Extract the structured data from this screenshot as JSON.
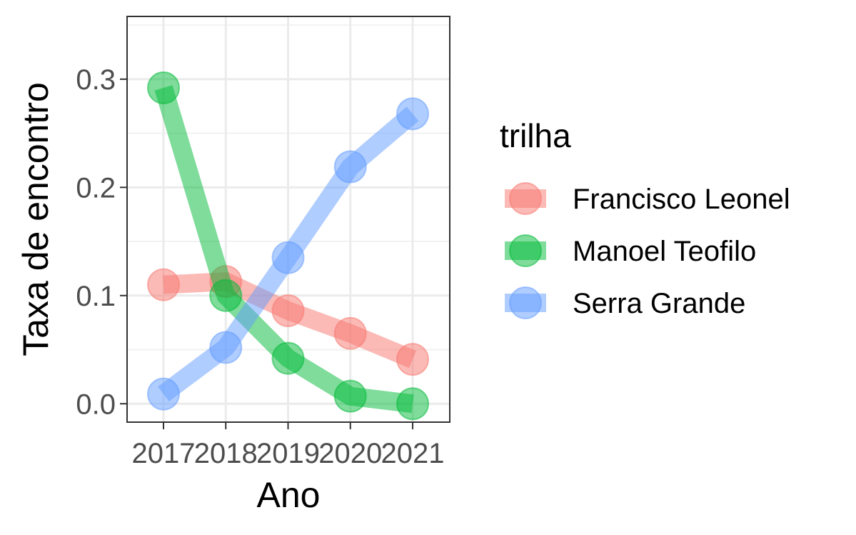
{
  "chart_data": {
    "type": "line",
    "title": "",
    "xlabel": "Ano",
    "ylabel": "Taxa de encontro",
    "categories": [
      "2017",
      "2018",
      "2019",
      "2020",
      "2021"
    ],
    "ylim": [
      -0.017,
      0.358
    ],
    "yticks": [
      "0.0",
      "0.1",
      "0.2",
      "0.3"
    ],
    "ytick_values": [
      0,
      0.1,
      0.2,
      0.3
    ],
    "grid": true,
    "legend": {
      "title": "trilha",
      "position": "right"
    },
    "series": [
      {
        "name": "Francisco Leonel",
        "color": "#F8766D",
        "values": [
          0.11,
          0.113,
          0.086,
          0.065,
          0.041
        ]
      },
      {
        "name": "Manoel Teofilo",
        "color": "#00BA38",
        "values": [
          0.292,
          0.1,
          0.042,
          0.007,
          0.0
        ]
      },
      {
        "name": "Serra Grande",
        "color": "#619CFF",
        "values": [
          0.009,
          0.052,
          0.135,
          0.219,
          0.268
        ]
      }
    ]
  }
}
